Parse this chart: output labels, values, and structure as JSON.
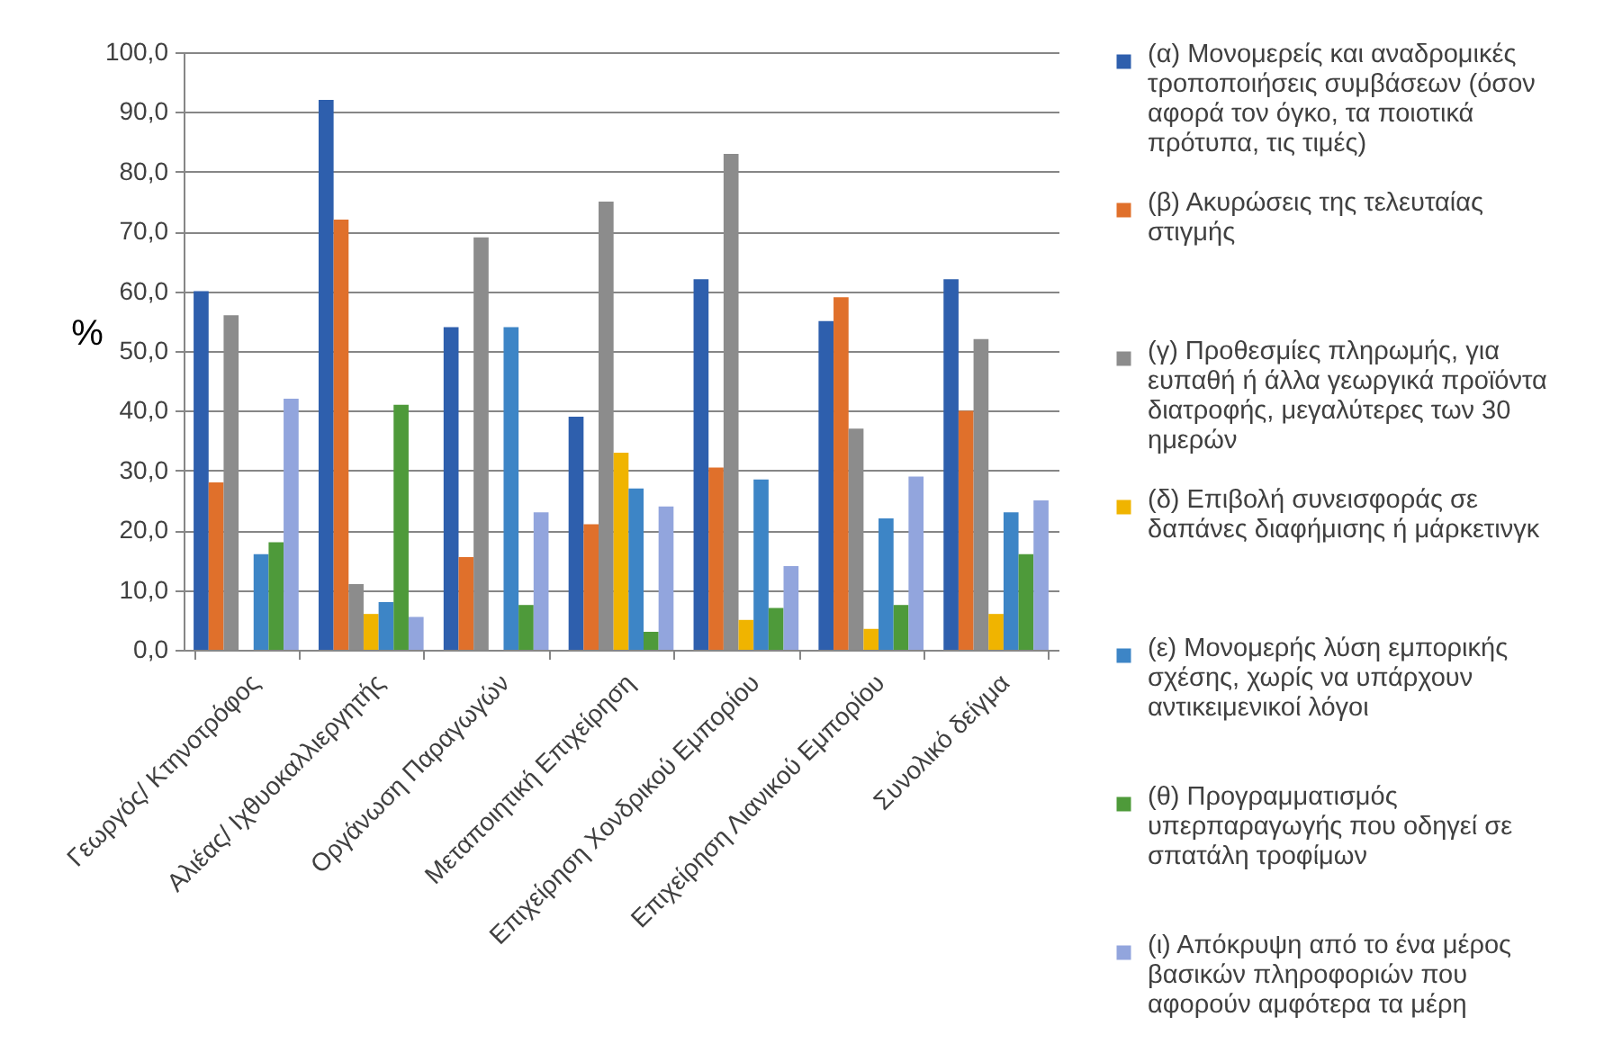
{
  "chart_data": {
    "type": "bar",
    "ylabel": "%",
    "categories": [
      "Γεωργός/ Κτηνοτρόφος",
      "Αλιέας/ Ιχθυοκαλλιεργητής",
      "Οργάνωση Παραγωγών",
      "Μεταποιητική Επιχείρηση",
      "Επιχείρηση Χονδρικού Εμπορίου",
      "Επιχείρηση Λιανικού Εμπορίου",
      "Συνολικό δείγμα"
    ],
    "series": [
      {
        "name": "(α) Μονομερείς και αναδρομικές τροποποιήσεις συμβάσεων (όσον αφορά τον όγκο, τα ποιοτικά πρότυπα, τις τιμές)",
        "color": "#2e5fad",
        "values": [
          60,
          92,
          54,
          39,
          62,
          55,
          62
        ]
      },
      {
        "name": "(β) Ακυρώσεις της τελευταίας στιγμής",
        "color": "#e0702b",
        "values": [
          28,
          72,
          15.5,
          21,
          30.5,
          59,
          40
        ]
      },
      {
        "name": "(γ) Προθεσμίες πληρωμής, για ευπαθή ή άλλα γεωργικά προϊόντα διατροφής, μεγαλύτερες των 30 ημερών",
        "color": "#8c8c8c",
        "values": [
          56,
          11,
          69,
          75,
          83,
          37,
          52
        ]
      },
      {
        "name": "(δ) Επιβολή συνεισφοράς σε δαπάνες διαφήμισης ή μάρκετινγκ",
        "color": "#f0b400",
        "values": [
          0,
          6,
          0,
          33,
          5,
          3.5,
          6
        ]
      },
      {
        "name": "(ε) Μονομερής λύση εμπορικής σχέσης, χωρίς να υπάρχουν αντικειμενικοί λόγοι",
        "color": "#3d85c6",
        "values": [
          16,
          8,
          54,
          27,
          28.5,
          22,
          23
        ]
      },
      {
        "name": "(θ) Προγραμματισμός υπερπαραγωγής που οδηγεί σε σπατάλη τροφίμων",
        "color": "#4e9a3a",
        "values": [
          18,
          41,
          7.5,
          3,
          7,
          7.5,
          16
        ]
      },
      {
        "name": "(ι) Απόκρυψη από το ένα μέρος βασικών πληροφοριών που αφορούν αμφότερα τα μέρη",
        "color": "#92a5dd",
        "values": [
          42,
          5.5,
          23,
          24,
          14,
          29,
          25
        ]
      }
    ],
    "ylim": [
      0,
      100
    ],
    "yticks": [
      {
        "value": 0,
        "label": "0,0"
      },
      {
        "value": 10,
        "label": "10,0"
      },
      {
        "value": 20,
        "label": "20,0"
      },
      {
        "value": 30,
        "label": "30,0"
      },
      {
        "value": 40,
        "label": "40,0"
      },
      {
        "value": 50,
        "label": "50,0"
      },
      {
        "value": 60,
        "label": "60,0"
      },
      {
        "value": 70,
        "label": "70,0"
      },
      {
        "value": 80,
        "label": "80,0"
      },
      {
        "value": 90,
        "label": "90,0"
      },
      {
        "value": 100,
        "label": "100,0"
      }
    ],
    "grid": "y",
    "legend": "right"
  }
}
